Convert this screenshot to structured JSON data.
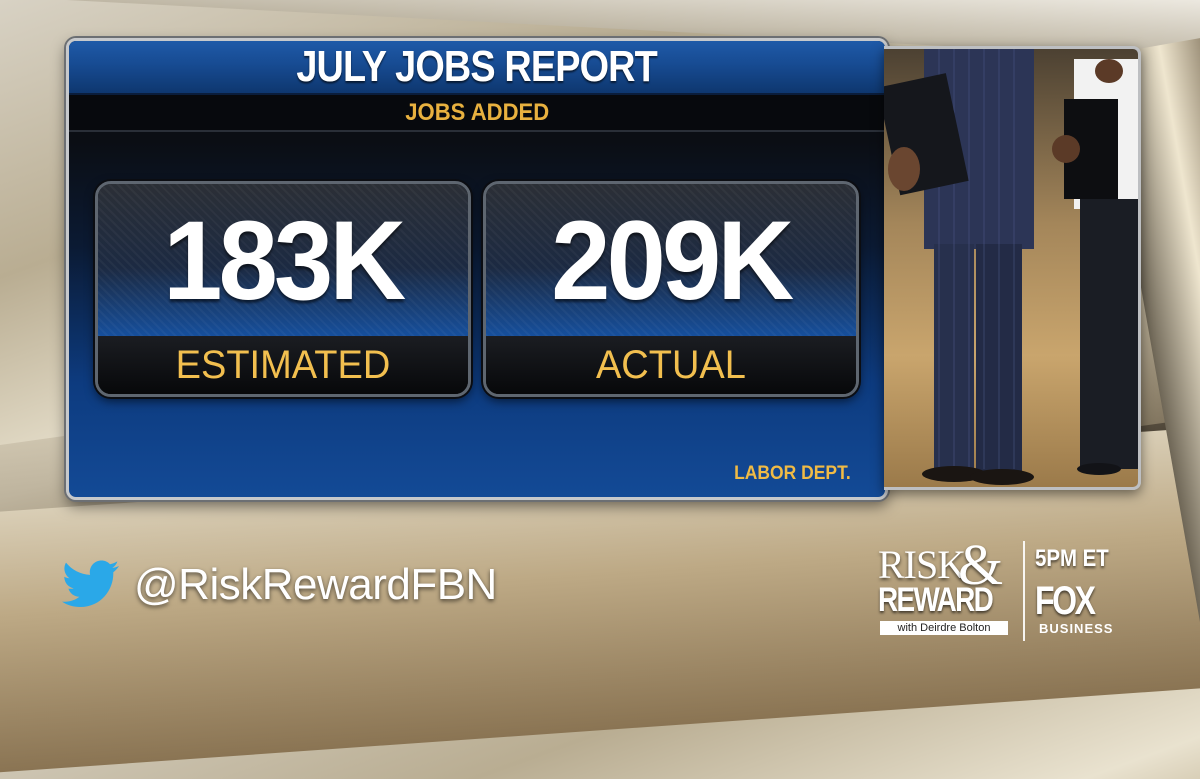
{
  "report": {
    "title": "JULY JOBS REPORT",
    "subtitle": "JOBS ADDED",
    "source": "LABOR DEPT."
  },
  "stats": {
    "estimated": {
      "value": "183K",
      "label": "ESTIMATED"
    },
    "actual": {
      "value": "209K",
      "label": "ACTUAL"
    }
  },
  "social": {
    "icon": "twitter-icon",
    "handle": "@RiskRewardFBN"
  },
  "show_logo": {
    "risk": "RISK",
    "amp": "&",
    "reward": "REWARD",
    "host": "with Deirdre Bolton",
    "time": "5PM ET",
    "network": "FOX",
    "network_sub": "BUSINESS"
  },
  "colors": {
    "accent_gold": "#f2bf4f",
    "header_blue": "#1f5aa8",
    "panel_dark": "#0b0e14"
  }
}
